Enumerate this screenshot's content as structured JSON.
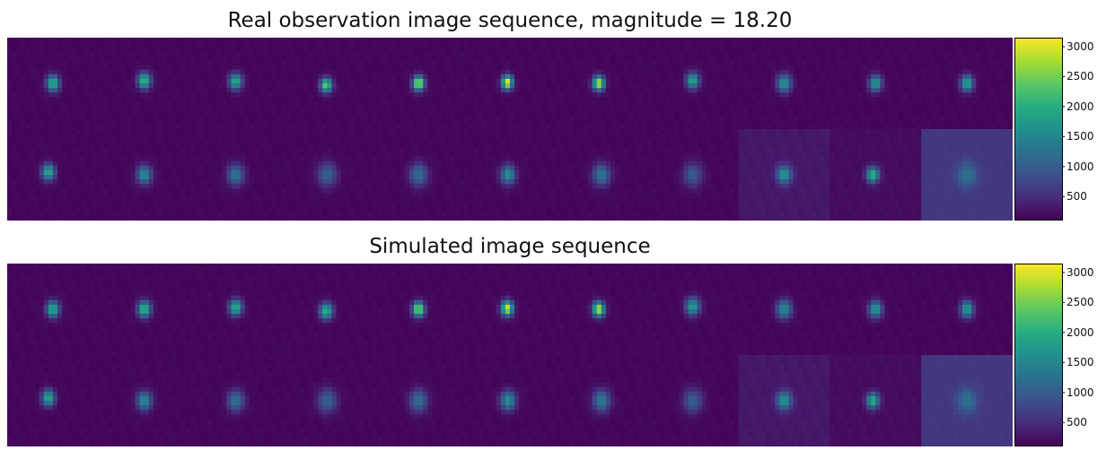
{
  "chart_data": [
    {
      "type": "heatmap",
      "title": "Real observation image sequence, magnitude = 18.20",
      "layout": {
        "rows": 2,
        "cols": 11
      },
      "colormap": "viridis",
      "colorbar": {
        "vmin": 100,
        "vmax": 3150,
        "ticks": [
          500,
          1000,
          1500,
          2000,
          2500,
          3000
        ]
      },
      "frames": [
        {
          "peak": 2100,
          "bg": 150,
          "sigma": 5.0,
          "ox": 0,
          "oy": 0
        },
        {
          "peak": 2200,
          "bg": 150,
          "sigma": 5.0,
          "ox": 0,
          "oy": -3
        },
        {
          "peak": 2050,
          "bg": 150,
          "sigma": 5.0,
          "ox": 0,
          "oy": -2
        },
        {
          "peak": 2500,
          "bg": 150,
          "sigma": 4.5,
          "ox": -1,
          "oy": 2
        },
        {
          "peak": 2900,
          "bg": 150,
          "sigma": 4.5,
          "ox": 0,
          "oy": 0
        },
        {
          "peak": 3100,
          "bg": 150,
          "sigma": 4.3,
          "ox": -3,
          "oy": -1
        },
        {
          "peak": 2850,
          "bg": 150,
          "sigma": 4.5,
          "ox": -3,
          "oy": 0
        },
        {
          "peak": 1950,
          "bg": 150,
          "sigma": 5.0,
          "ox": 0,
          "oy": -3
        },
        {
          "peak": 1750,
          "bg": 150,
          "sigma": 5.5,
          "ox": 0,
          "oy": 0
        },
        {
          "peak": 1850,
          "bg": 150,
          "sigma": 5.0,
          "ox": 0,
          "oy": 0
        },
        {
          "peak": 2000,
          "bg": 150,
          "sigma": 5.0,
          "ox": 0,
          "oy": 0
        },
        {
          "peak": 2050,
          "bg": 150,
          "sigma": 5.0,
          "ox": -5,
          "oy": -3
        },
        {
          "peak": 1600,
          "bg": 150,
          "sigma": 5.8,
          "ox": 0,
          "oy": 0
        },
        {
          "peak": 1350,
          "bg": 150,
          "sigma": 6.5,
          "ox": 0,
          "oy": 0
        },
        {
          "peak": 1100,
          "bg": 150,
          "sigma": 7.5,
          "ox": 0,
          "oy": 0
        },
        {
          "peak": 1250,
          "bg": 150,
          "sigma": 7.0,
          "ox": 0,
          "oy": 0
        },
        {
          "peak": 1650,
          "bg": 150,
          "sigma": 5.8,
          "ox": -2,
          "oy": 0
        },
        {
          "peak": 1350,
          "bg": 150,
          "sigma": 6.8,
          "ox": 0,
          "oy": 0
        },
        {
          "peak": 1000,
          "bg": 150,
          "sigma": 7.5,
          "ox": 0,
          "oy": 0
        },
        {
          "peak": 1800,
          "bg": 300,
          "sigma": 5.5,
          "ox": 0,
          "oy": 0
        },
        {
          "peak": 2150,
          "bg": 200,
          "sigma": 4.8,
          "ox": -3,
          "oy": 0
        },
        {
          "peak": 1300,
          "bg": 600,
          "sigma": 7.5,
          "ox": 0,
          "oy": 0
        }
      ]
    },
    {
      "type": "heatmap",
      "title": "Simulated image sequence",
      "layout": {
        "rows": 2,
        "cols": 11
      },
      "colormap": "viridis",
      "colorbar": {
        "vmin": 100,
        "vmax": 3150,
        "ticks": [
          500,
          1000,
          1500,
          2000,
          2500,
          3000
        ]
      },
      "frames": [
        {
          "peak": 2050,
          "bg": 150,
          "sigma": 5.0,
          "ox": 0,
          "oy": 0
        },
        {
          "peak": 2200,
          "bg": 150,
          "sigma": 5.0,
          "ox": 0,
          "oy": 0
        },
        {
          "peak": 2100,
          "bg": 150,
          "sigma": 5.0,
          "ox": 0,
          "oy": -2
        },
        {
          "peak": 2150,
          "bg": 150,
          "sigma": 5.0,
          "ox": -1,
          "oy": 2
        },
        {
          "peak": 2750,
          "bg": 150,
          "sigma": 4.6,
          "ox": 0,
          "oy": 0
        },
        {
          "peak": 2950,
          "bg": 150,
          "sigma": 4.6,
          "ox": -3,
          "oy": -1
        },
        {
          "peak": 2850,
          "bg": 150,
          "sigma": 4.6,
          "ox": -3,
          "oy": 0
        },
        {
          "peak": 1850,
          "bg": 150,
          "sigma": 5.5,
          "ox": 0,
          "oy": -3
        },
        {
          "peak": 1650,
          "bg": 150,
          "sigma": 5.8,
          "ox": 0,
          "oy": 0
        },
        {
          "peak": 1850,
          "bg": 150,
          "sigma": 5.2,
          "ox": 0,
          "oy": 0
        },
        {
          "peak": 1850,
          "bg": 150,
          "sigma": 5.2,
          "ox": 0,
          "oy": 0
        },
        {
          "peak": 2000,
          "bg": 150,
          "sigma": 5.0,
          "ox": -5,
          "oy": -3
        },
        {
          "peak": 1600,
          "bg": 150,
          "sigma": 5.8,
          "ox": 0,
          "oy": 0
        },
        {
          "peak": 1300,
          "bg": 150,
          "sigma": 6.5,
          "ox": 0,
          "oy": 0
        },
        {
          "peak": 1100,
          "bg": 150,
          "sigma": 7.5,
          "ox": 0,
          "oy": 0
        },
        {
          "peak": 1250,
          "bg": 150,
          "sigma": 7.0,
          "ox": 0,
          "oy": 0
        },
        {
          "peak": 1650,
          "bg": 150,
          "sigma": 6.0,
          "ox": -2,
          "oy": 0
        },
        {
          "peak": 1400,
          "bg": 150,
          "sigma": 6.8,
          "ox": 0,
          "oy": 0
        },
        {
          "peak": 1050,
          "bg": 150,
          "sigma": 7.5,
          "ox": 0,
          "oy": 0
        },
        {
          "peak": 1800,
          "bg": 300,
          "sigma": 5.5,
          "ox": 0,
          "oy": 0
        },
        {
          "peak": 2100,
          "bg": 200,
          "sigma": 4.8,
          "ox": -3,
          "oy": 0
        },
        {
          "peak": 1300,
          "bg": 600,
          "sigma": 7.5,
          "ox": 0,
          "oy": 0
        }
      ]
    }
  ]
}
